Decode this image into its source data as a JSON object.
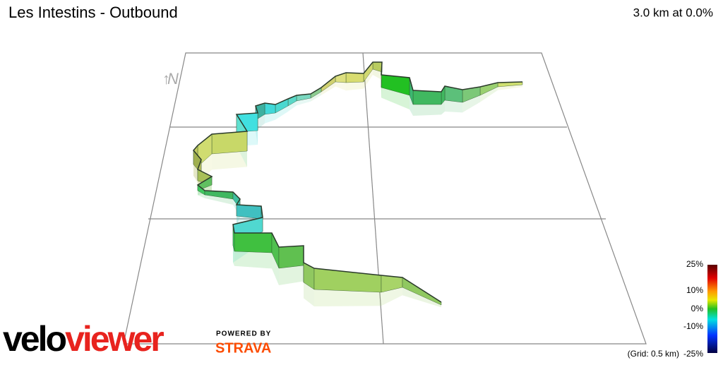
{
  "header": {
    "title": "Les Intestins - Outbound",
    "summary": "3.0 km at 0.0%"
  },
  "compass": "N",
  "legend": {
    "labels": [
      "25%",
      "10%",
      "0%",
      "-10%",
      "-25%"
    ],
    "grid_note": "(Grid: 0.5 km)"
  },
  "logo": {
    "part1": "velo",
    "part2": "viewer",
    "powered_by": "POWERED BY",
    "strava": "STRAVA"
  }
}
